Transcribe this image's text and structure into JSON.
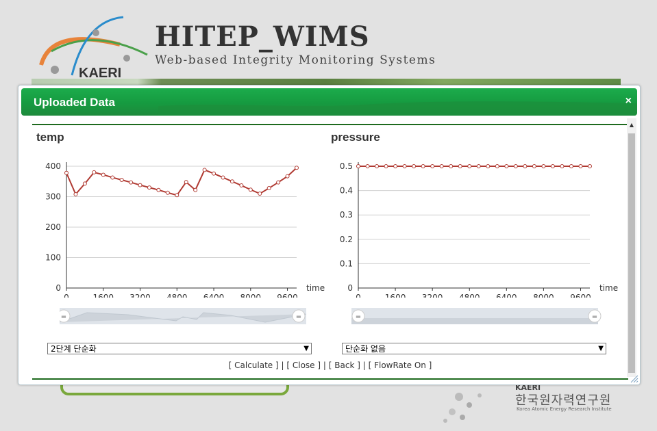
{
  "site": {
    "logo_text": "KAERI",
    "title": "HITEP_WIMS",
    "subtitle": "Web-based Integrity Monitoring Systems",
    "footer_org_abbr": "KAERI",
    "footer_org_korean": "한국원자력연구원",
    "footer_org_english": "Korea Atomic Energy Research Institute"
  },
  "dialog": {
    "title": "Uploaded Data",
    "close_symbol": "×"
  },
  "colors": {
    "accent_green": "#1ba349",
    "line_red": "#b03a32",
    "divider_green": "#1e6a1e"
  },
  "chart_data": [
    {
      "type": "line",
      "title": "temp",
      "xlabel": "time",
      "ylabel": "",
      "xlim": [
        0,
        10000
      ],
      "ylim": [
        0,
        400
      ],
      "x_ticks": [
        0,
        1600,
        3200,
        4800,
        6400,
        8000,
        9600
      ],
      "y_ticks": [
        0,
        100,
        200,
        300,
        400
      ],
      "grid": true,
      "series": [
        {
          "x": [
            0,
            400,
            800,
            1200,
            1600,
            2000,
            2400,
            2800,
            3200,
            3600,
            4000,
            4400,
            4800,
            5200,
            5600,
            6000,
            6400,
            6800,
            7200,
            7600,
            8000,
            8400,
            8800,
            9200,
            9600,
            10000
          ],
          "values": [
            378,
            308,
            343,
            380,
            372,
            363,
            355,
            347,
            338,
            330,
            322,
            313,
            305,
            348,
            322,
            388,
            376,
            363,
            350,
            337,
            323,
            310,
            328,
            347,
            367,
            395
          ]
        }
      ]
    },
    {
      "type": "line",
      "title": "pressure",
      "xlabel": "time",
      "ylabel": "",
      "xlim": [
        0,
        10000
      ],
      "ylim": [
        0,
        0.5
      ],
      "x_ticks": [
        0,
        1600,
        3200,
        4800,
        6400,
        8000,
        9600
      ],
      "y_ticks": [
        0,
        0.1,
        0.2,
        0.3,
        0.4,
        0.5
      ],
      "grid": true,
      "series": [
        {
          "x": [
            0,
            400,
            800,
            1200,
            1600,
            2000,
            2400,
            2800,
            3200,
            3600,
            4000,
            4400,
            4800,
            5200,
            5600,
            6000,
            6400,
            6800,
            7200,
            7600,
            8000,
            8400,
            8800,
            9200,
            9600,
            10000
          ],
          "values": [
            0.5,
            0.5,
            0.5,
            0.5,
            0.5,
            0.5,
            0.5,
            0.5,
            0.5,
            0.5,
            0.5,
            0.5,
            0.5,
            0.5,
            0.5,
            0.5,
            0.5,
            0.5,
            0.5,
            0.5,
            0.5,
            0.5,
            0.5,
            0.5,
            0.5,
            0.5
          ]
        }
      ]
    }
  ],
  "selects": {
    "temp_simplify": "2단계 단순화",
    "pressure_simplify": "단순화 없음"
  },
  "links": {
    "calculate": "[ Calculate ]",
    "close": "[ Close ]",
    "back": "[ Back ]",
    "flowrate": "[ FlowRate On ]",
    "separator": "|"
  }
}
